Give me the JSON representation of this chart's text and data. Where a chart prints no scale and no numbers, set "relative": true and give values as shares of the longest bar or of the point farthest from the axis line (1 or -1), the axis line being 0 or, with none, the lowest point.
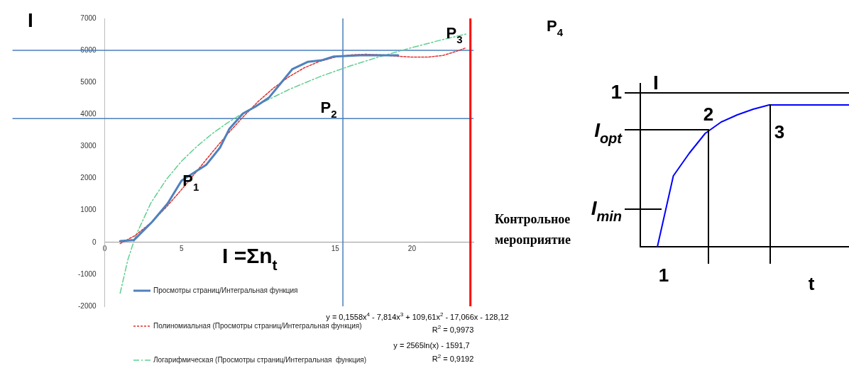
{
  "chart_data": [
    {
      "type": "line",
      "ylabel": "I",
      "xlim": [
        0,
        24
      ],
      "xticks": [
        0,
        5,
        15,
        20
      ],
      "ylim": [
        -2000,
        7000
      ],
      "yticks": [
        -2000,
        -1000,
        0,
        1000,
        2000,
        3000,
        4000,
        5000,
        6000,
        7000
      ],
      "grid": false,
      "legend": "bottom",
      "marker": "none",
      "series": [
        {
          "name": "Просмотры страниц/Интегральная функция",
          "color": "#4f81bd",
          "line_style": "solid",
          "x": [
            1,
            1.9,
            3.1,
            4.1,
            5,
            6.6,
            7.5,
            8.1,
            9,
            9.8,
            10.7,
            11.5,
            12.2,
            13.2,
            14.1,
            14.9,
            16.6,
            19.1
          ],
          "values": [
            40,
            70,
            650,
            1220,
            1930,
            2420,
            2960,
            3540,
            4030,
            4240,
            4530,
            5000,
            5410,
            5640,
            5690,
            5810,
            5850,
            5850
          ]
        },
        {
          "name": "Полиномиальная (Просмотры страниц/Интегральная функция)",
          "color": "#e03030",
          "line_style": "dotted",
          "x": [
            1,
            2,
            3,
            4,
            5,
            6,
            7,
            8,
            9,
            10,
            11,
            12,
            13,
            14,
            15,
            16,
            17,
            18,
            19,
            20,
            21,
            22,
            23,
            23.5
          ],
          "values": [
            -40,
            220,
            610,
            1100,
            1650,
            2230,
            2820,
            3390,
            3920,
            4410,
            4830,
            5180,
            5460,
            5660,
            5790,
            5860,
            5880,
            5860,
            5820,
            5790,
            5790,
            5840,
            5990,
            6080
          ]
        },
        {
          "name": "Логарифмическая (Просмотры страниц/Интегральная  функция)",
          "color": "#5fcf8f",
          "line_style": "dashed",
          "x": [
            1,
            1.5,
            2,
            3,
            4,
            5,
            6,
            7,
            8,
            9,
            10,
            12,
            14,
            16,
            18,
            20,
            22,
            23.5
          ],
          "values": [
            -1590,
            -550,
            190,
            1230,
            1960,
            2540,
            3000,
            3400,
            3740,
            4040,
            4310,
            4780,
            5180,
            5520,
            5820,
            6090,
            6340,
            6510
          ]
        }
      ],
      "ref_lines": [
        {
          "axis": "y",
          "value": 6000,
          "color": "#4a7ebb"
        },
        {
          "axis": "y",
          "value": 3870,
          "color": "#4a7ebb"
        },
        {
          "axis": "x",
          "value": 15.5,
          "color": "#4a7ebb"
        },
        {
          "axis": "x",
          "value": 23.8,
          "color": "#ff0000"
        }
      ],
      "annotations": [
        {
          "text": "P$_{1}$",
          "x": 5.6,
          "y": 1900
        },
        "P$_{2}$",
        "P$_{3}$",
        "P$_{4}$",
        "I =Σn$_{t}$",
        "y = 0,1558x$^{4}$ - 7,814x$^{3}$ + 109,61x$^{2}$ - 17,066x - 128,12",
        "R$^{2}$ = 0,9973",
        "y = 2565ln(x) - 1591,7",
        "R$^{2}$ = 0,9192"
      ]
    },
    {
      "type": "line",
      "relative": true,
      "ylabel": "I",
      "xlabel": "t",
      "grid": false,
      "legend": false,
      "marker": "none",
      "categories": [
        null,
        null,
        null,
        null,
        null,
        null,
        null,
        null,
        null,
        null,
        null,
        null,
        null
      ],
      "series": [
        {
          "color": "#0000ff",
          "line_style": "solid",
          "values": [
            0,
            0.5,
            0.66,
            0.8,
            0.88,
            0.93,
            0.97,
            1,
            1,
            1,
            1,
            1,
            1
          ]
        }
      ],
      "annotations": [
        "1",
        "I$_{opt}$",
        "I$_{min}$",
        "2",
        "3",
        "1",
        "Контрольное мероприятие"
      ]
    }
  ]
}
